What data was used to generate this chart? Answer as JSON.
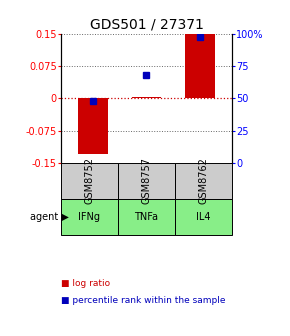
{
  "title": "GDS501 / 27371",
  "samples": [
    "GSM8752",
    "GSM8757",
    "GSM8762"
  ],
  "agents": [
    "IFNg",
    "TNFa",
    "IL4"
  ],
  "log_ratios": [
    -0.13,
    0.002,
    0.15
  ],
  "percentile_ranks_pct": [
    48,
    68,
    97
  ],
  "ylim_left": [
    -0.15,
    0.15
  ],
  "yticks_left": [
    -0.15,
    -0.075,
    0,
    0.075,
    0.15
  ],
  "ytick_labels_left": [
    "-0.15",
    "-0.075",
    "0",
    "0.075",
    "0.15"
  ],
  "ylim_right": [
    0,
    100
  ],
  "yticks_right": [
    0,
    25,
    50,
    75,
    100
  ],
  "ytick_labels_right": [
    "0",
    "25",
    "50",
    "75",
    "100%"
  ],
  "bar_color": "#cc0000",
  "dot_color": "#0000bb",
  "agent_bg": "#88ee88",
  "sample_bg": "#cccccc",
  "zero_line_color": "#cc0000",
  "grid_color": "#666666",
  "title_fontsize": 10,
  "tick_fontsize": 7,
  "label_fontsize": 7,
  "bar_width": 0.55
}
